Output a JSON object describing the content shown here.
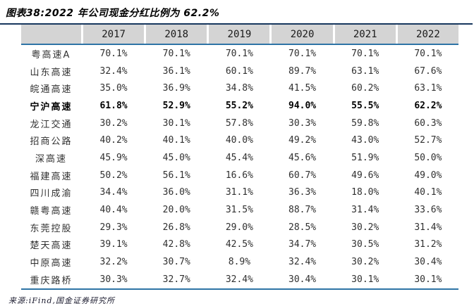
{
  "colors": {
    "title_rule": "#17375e",
    "table_rule": "#2e74a6",
    "header_bg": "#d4d4d4",
    "text": "#303030"
  },
  "source_note": "来源:iFind,国金证券研究所",
  "chart_data": {
    "type": "table",
    "title": "图表38:2022 年公司现金分红比例为 62.2%",
    "columns": [
      "",
      "2017",
      "2018",
      "2019",
      "2020",
      "2021",
      "2022"
    ],
    "rows": [
      {
        "name": "粤高速A",
        "bold": false,
        "values": [
          "70.1%",
          "70.1%",
          "70.1%",
          "70.1%",
          "70.1%",
          "70.1%"
        ]
      },
      {
        "name": "山东高速",
        "bold": false,
        "values": [
          "32.4%",
          "36.1%",
          "60.1%",
          "89.7%",
          "63.1%",
          "67.6%"
        ]
      },
      {
        "name": "皖通高速",
        "bold": false,
        "values": [
          "35.0%",
          "36.9%",
          "34.8%",
          "41.5%",
          "60.2%",
          "63.1%"
        ]
      },
      {
        "name": "宁沪高速",
        "bold": true,
        "values": [
          "61.8%",
          "52.9%",
          "55.2%",
          "94.0%",
          "55.5%",
          "62.2%"
        ]
      },
      {
        "name": "龙江交通",
        "bold": false,
        "values": [
          "30.2%",
          "30.1%",
          "57.8%",
          "30.3%",
          "59.8%",
          "60.3%"
        ]
      },
      {
        "name": "招商公路",
        "bold": false,
        "values": [
          "40.2%",
          "40.1%",
          "40.0%",
          "49.2%",
          "43.0%",
          "52.7%"
        ]
      },
      {
        "name": "深高速",
        "bold": false,
        "values": [
          "45.9%",
          "45.0%",
          "45.4%",
          "45.6%",
          "51.9%",
          "50.0%"
        ]
      },
      {
        "name": "福建高速",
        "bold": false,
        "values": [
          "50.2%",
          "56.1%",
          "16.6%",
          "60.7%",
          "49.6%",
          "49.0%"
        ]
      },
      {
        "name": "四川成渝",
        "bold": false,
        "values": [
          "34.4%",
          "36.0%",
          "31.1%",
          "36.3%",
          "18.0%",
          "40.1%"
        ]
      },
      {
        "name": "赣粤高速",
        "bold": false,
        "values": [
          "40.4%",
          "20.0%",
          "31.5%",
          "88.7%",
          "31.4%",
          "33.6%"
        ]
      },
      {
        "name": "东莞控股",
        "bold": false,
        "values": [
          "29.3%",
          "26.8%",
          "29.0%",
          "28.5%",
          "30.2%",
          "31.4%"
        ]
      },
      {
        "name": "楚天高速",
        "bold": false,
        "values": [
          "39.1%",
          "42.8%",
          "42.5%",
          "34.7%",
          "30.5%",
          "31.2%"
        ]
      },
      {
        "name": "中原高速",
        "bold": false,
        "values": [
          "32.2%",
          "30.7%",
          "8.9%",
          "32.4%",
          "30.2%",
          "30.4%"
        ]
      },
      {
        "name": "重庆路桥",
        "bold": false,
        "values": [
          "30.3%",
          "32.7%",
          "32.4%",
          "30.4%",
          "30.1%",
          "30.1%"
        ]
      }
    ]
  }
}
